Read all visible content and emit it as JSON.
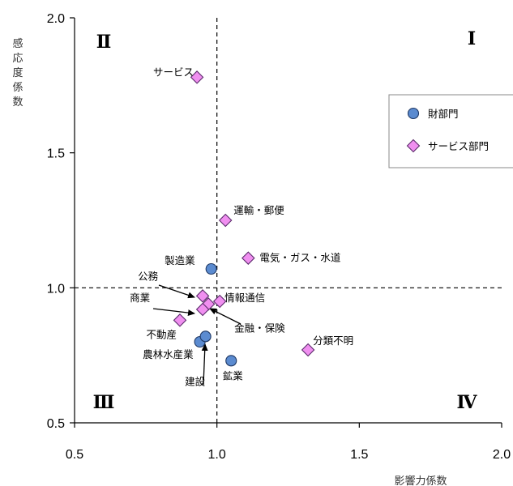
{
  "chart_data": {
    "type": "scatter",
    "xlabel": "影響力係数",
    "ylabel": "感応度係数",
    "xlim": [
      0.5,
      2.0
    ],
    "ylim": [
      0.5,
      2.0
    ],
    "xticks": [
      "0.5",
      "1.0",
      "1.5",
      "2.0"
    ],
    "yticks": [
      "0.5",
      "1.0",
      "1.5",
      "2.0"
    ],
    "reference_lines": {
      "x": 1.0,
      "y": 1.0,
      "style": "dashed"
    },
    "quadrants": [
      {
        "label": "Ⅰ",
        "position": "top-right"
      },
      {
        "label": "Ⅱ",
        "position": "top-left"
      },
      {
        "label": "Ⅲ",
        "position": "bottom-left"
      },
      {
        "label": "Ⅳ",
        "position": "bottom-right"
      }
    ],
    "legend_position": "right",
    "series": [
      {
        "name": "財部門",
        "marker": "circle",
        "color": "#5b8bd0",
        "points": [
          {
            "label": "製造業",
            "x": 0.98,
            "y": 1.07
          },
          {
            "label": "鉱業",
            "x": 1.05,
            "y": 0.73
          },
          {
            "label": "農林水産業",
            "x": 0.94,
            "y": 0.8
          },
          {
            "label": "建設",
            "x": 0.96,
            "y": 0.82
          }
        ]
      },
      {
        "name": "サービス部門",
        "marker": "diamond",
        "color": "#f08ff0",
        "points": [
          {
            "label": "サービス",
            "x": 0.93,
            "y": 1.78
          },
          {
            "label": "運輸・郵便",
            "x": 1.03,
            "y": 1.25
          },
          {
            "label": "電気・ガス・水道",
            "x": 1.11,
            "y": 1.11
          },
          {
            "label": "公務",
            "x": 0.95,
            "y": 0.97
          },
          {
            "label": "情報通信",
            "x": 1.01,
            "y": 0.95
          },
          {
            "label": "金融・保険",
            "x": 0.97,
            "y": 0.94
          },
          {
            "label": "商業",
            "x": 0.95,
            "y": 0.92
          },
          {
            "label": "不動産",
            "x": 0.87,
            "y": 0.88
          },
          {
            "label": "分類不明",
            "x": 1.32,
            "y": 0.77
          }
        ]
      }
    ]
  }
}
